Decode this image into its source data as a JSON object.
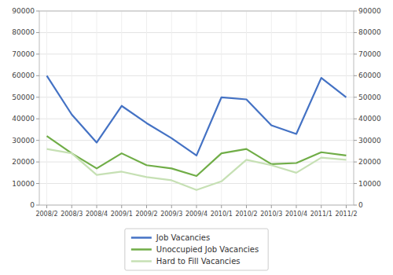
{
  "chart_data": {
    "type": "line",
    "categories": [
      "2008/2",
      "2008/3",
      "2008/4",
      "2009/1",
      "2009/2",
      "2009/3",
      "2009/4",
      "2010/1",
      "2010/2",
      "2010/3",
      "2010/4",
      "2011/1",
      "2011/2"
    ],
    "series": [
      {
        "name": "Job Vacancies",
        "color": "#4472c4",
        "values": [
          60000,
          42000,
          29000,
          46000,
          38000,
          31000,
          23000,
          50000,
          49000,
          37000,
          33000,
          59000,
          50000
        ]
      },
      {
        "name": "Unoccupied Job Vacancies",
        "color": "#70ad47",
        "values": [
          32000,
          24000,
          17000,
          24000,
          18500,
          17000,
          13500,
          24000,
          26000,
          19000,
          19500,
          24500,
          23000
        ]
      },
      {
        "name": "Hard to Fill Vacancies",
        "color": "#c6e0b4",
        "values": [
          26000,
          24000,
          14000,
          15500,
          13000,
          11500,
          7000,
          11000,
          21000,
          18500,
          15000,
          22000,
          21000
        ]
      }
    ],
    "ylim": [
      0,
      90000
    ],
    "yticks": [
      0,
      10000,
      20000,
      30000,
      40000,
      50000,
      60000,
      70000,
      80000,
      90000
    ],
    "y2lim": [
      0,
      90000
    ],
    "y2ticks": [
      0,
      10000,
      20000,
      30000,
      40000,
      50000,
      60000,
      70000,
      80000,
      90000
    ],
    "grid": true,
    "legend": "bottom"
  }
}
